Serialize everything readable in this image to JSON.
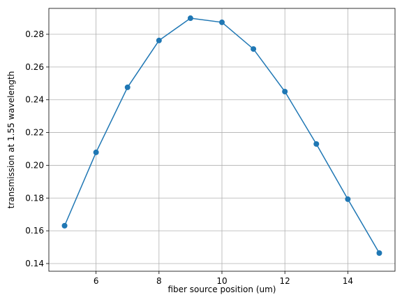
{
  "chart_data": {
    "type": "line",
    "x_label": "fiber source position (um)",
    "y_label": "transmission at 1.55 wavelength",
    "x": [
      5,
      6,
      7,
      8,
      9,
      10,
      11,
      12,
      13,
      14,
      15
    ],
    "series": [
      {
        "color": "#1f77b4",
        "values": [
          0.1631,
          0.2079,
          0.2476,
          0.2762,
          0.2898,
          0.2873,
          0.271,
          0.245,
          0.213,
          0.1793,
          0.1464
        ]
      }
    ],
    "xlim": [
      4.5,
      15.5
    ],
    "xticks": [
      6,
      8,
      10,
      12,
      14
    ],
    "ylim": [
      0.1353,
      0.2958
    ],
    "yticks": [
      0.14,
      0.16,
      0.18,
      {
        "value": 0.2,
        "label": "0.20"
      },
      0.22,
      0.24,
      0.26,
      0.28
    ],
    "grid": true,
    "marker": "o"
  }
}
